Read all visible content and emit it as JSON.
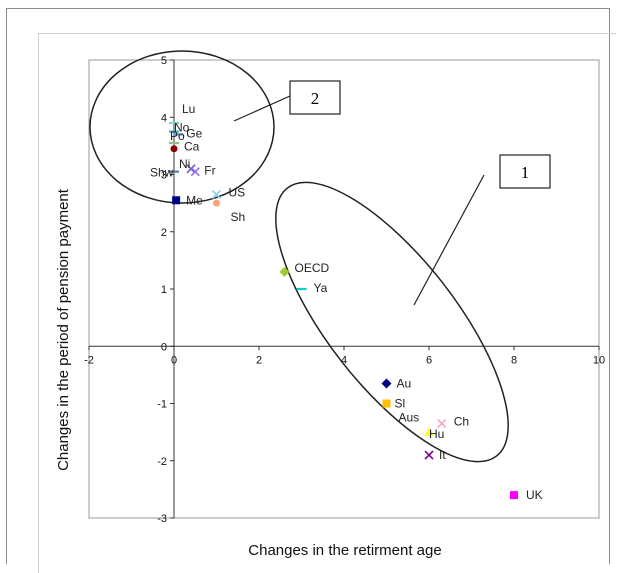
{
  "chart_data": {
    "type": "scatter",
    "xlabel": "Changes in the retirment age",
    "ylabel": "Changes in the period of pension payment",
    "xlim": [
      -2,
      10
    ],
    "ylim": [
      -3,
      5
    ],
    "x_ticks": [
      "-2",
      "0",
      "2",
      "4",
      "6",
      "8",
      "10"
    ],
    "y_ticks": [
      "-3",
      "-2",
      "-1",
      "0",
      "1",
      "2",
      "3",
      "4",
      "5"
    ],
    "grid": false,
    "points": [
      {
        "label": "Lu",
        "x": 0.0,
        "y": 3.9,
        "color": "#7fd3d3",
        "marker": "dash"
      },
      {
        "label": "No",
        "x": 0.0,
        "y": 3.75,
        "color": "#3cb4c8",
        "marker": "dash"
      },
      {
        "label": "Ge",
        "x": 0.1,
        "y": 3.7,
        "color": "#5b9bd5",
        "marker": "dash"
      },
      {
        "label": "Po",
        "x": 0.0,
        "y": 3.55,
        "color": "#8fbc8f",
        "marker": "dash"
      },
      {
        "label": "Ca",
        "x": 0.0,
        "y": 3.45,
        "color": "#8b0000",
        "marker": "circle"
      },
      {
        "label": "Ni",
        "x": 0.4,
        "y": 3.1,
        "color": "#6a5acd",
        "marker": "x"
      },
      {
        "label": "Fr",
        "x": 0.5,
        "y": 3.05,
        "color": "#9370db",
        "marker": "x"
      },
      {
        "label": "Shw",
        "x": 0.0,
        "y": 3.05,
        "color": "#4682b4",
        "marker": "dash"
      },
      {
        "label": "Me",
        "x": 0.05,
        "y": 2.55,
        "color": "#00008b",
        "marker": "square"
      },
      {
        "label": "US",
        "x": 1.0,
        "y": 2.65,
        "color": "#87ceeb",
        "marker": "x"
      },
      {
        "label": "Sh",
        "x": 1.0,
        "y": 2.5,
        "color": "#ffa07a",
        "marker": "circle"
      },
      {
        "label": "OECD",
        "x": 2.6,
        "y": 1.3,
        "color": "#9acd32",
        "marker": "diamond"
      },
      {
        "label": "Ya",
        "x": 3.0,
        "y": 1.0,
        "color": "#00ced1",
        "marker": "dash"
      },
      {
        "label": "Au",
        "x": 5.0,
        "y": -0.65,
        "color": "#000080",
        "marker": "diamond"
      },
      {
        "label": "Sl",
        "x": 5.0,
        "y": -1.0,
        "color": "#ffc000",
        "marker": "square"
      },
      {
        "label": "Aus",
        "x": 5.0,
        "y": -1.0,
        "color": "#ffc000",
        "marker": "none"
      },
      {
        "label": "Ch",
        "x": 6.3,
        "y": -1.35,
        "color": "#f4a6c8",
        "marker": "x"
      },
      {
        "label": "Hu",
        "x": 6.0,
        "y": -1.5,
        "color": "#ffff33",
        "marker": "triangle"
      },
      {
        "label": "It",
        "x": 6.0,
        "y": -1.9,
        "color": "#800080",
        "marker": "x"
      },
      {
        "label": "UK",
        "x": 8.0,
        "y": -2.6,
        "color": "#ff00ff",
        "marker": "square"
      }
    ],
    "annotations": [
      "1",
      "2"
    ]
  }
}
